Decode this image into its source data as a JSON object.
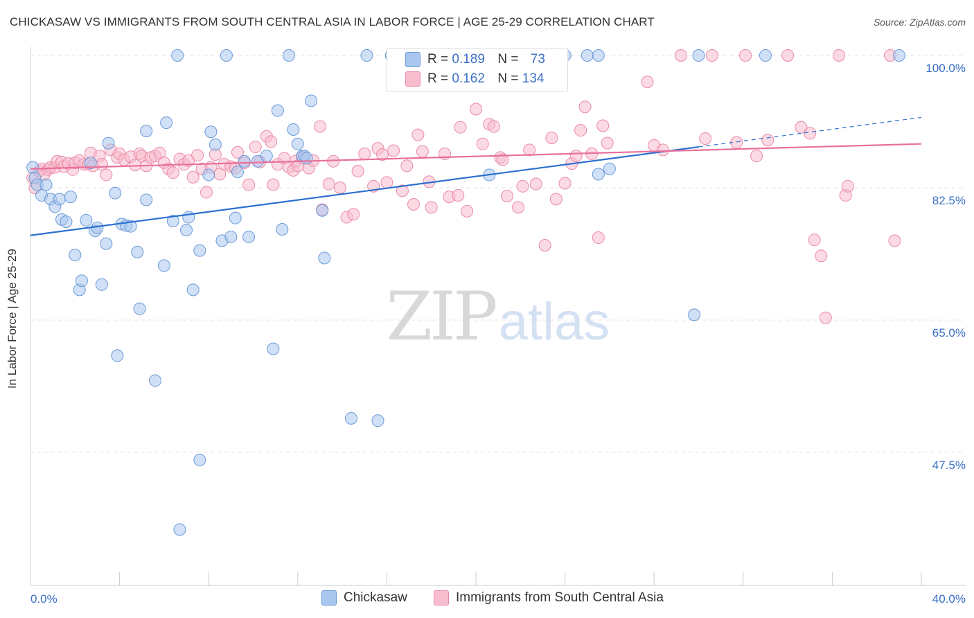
{
  "title": "CHICKASAW VS IMMIGRANTS FROM SOUTH CENTRAL ASIA IN LABOR FORCE | AGE 25-29 CORRELATION CHART",
  "source": "Source: ZipAtlas.com",
  "watermark": {
    "zip": "ZIP",
    "atlas": "atlas"
  },
  "legend": {
    "r_label": "R =",
    "n_label": "N =",
    "rows": [
      {
        "r": "0.189",
        "n": "73"
      },
      {
        "r": "0.162",
        "n": "134"
      }
    ]
  },
  "colors": {
    "blue_fill": "#a9c6ee",
    "blue_stroke": "#6b9ad8",
    "blue_line": "#2a6fd0",
    "pink_fill": "#f7bccd",
    "pink_stroke": "#ea8aa6",
    "pink_line": "#e8709a",
    "tick_label": "#3a6fc4"
  },
  "chart_data": {
    "type": "scatter",
    "title": "CHICKASAW VS IMMIGRANTS FROM SOUTH CENTRAL ASIA IN LABOR FORCE | AGE 25-29 CORRELATION CHART",
    "xlabel": "",
    "ylabel": "In Labor Force | Age 25-29",
    "xlim": [
      0,
      40
    ],
    "ylim": [
      30,
      101
    ],
    "x_tick_labels": [
      "0.0%",
      "40.0%"
    ],
    "y_ticks": [
      47.5,
      65.0,
      82.5,
      100.0
    ],
    "y_tick_labels": [
      "47.5%",
      "65.0%",
      "82.5%",
      "100.0%"
    ],
    "grid": true,
    "legend_position": "top-center",
    "series": [
      {
        "name": "Chickasaw",
        "r": 0.189,
        "n": 73,
        "trend": {
          "x0": 0,
          "y0": 76.2,
          "x1": 30.0,
          "y1": 87.9,
          "dash_to_x": 40,
          "dash_to_y": 91.8
        },
        "points": [
          [
            0.1,
            85.2
          ],
          [
            0.2,
            83.8
          ],
          [
            0.3,
            82.9
          ],
          [
            0.5,
            81.5
          ],
          [
            0.7,
            82.9
          ],
          [
            0.9,
            81.0
          ],
          [
            1.1,
            80.0
          ],
          [
            1.3,
            81.0
          ],
          [
            1.4,
            78.3
          ],
          [
            1.6,
            78.0
          ],
          [
            1.8,
            81.3
          ],
          [
            2.0,
            73.6
          ],
          [
            2.2,
            69.0
          ],
          [
            2.3,
            70.2
          ],
          [
            2.5,
            78.2
          ],
          [
            2.7,
            85.8
          ],
          [
            2.9,
            76.8
          ],
          [
            3.0,
            77.2
          ],
          [
            3.2,
            69.7
          ],
          [
            3.4,
            75.1
          ],
          [
            3.5,
            88.4
          ],
          [
            3.8,
            81.8
          ],
          [
            3.9,
            60.3
          ],
          [
            4.1,
            77.7
          ],
          [
            4.3,
            77.5
          ],
          [
            4.5,
            77.4
          ],
          [
            4.8,
            74.0
          ],
          [
            4.9,
            66.5
          ],
          [
            5.2,
            90.0
          ],
          [
            5.2,
            80.9
          ],
          [
            5.6,
            57.0
          ],
          [
            6.0,
            72.2
          ],
          [
            6.1,
            91.1
          ],
          [
            6.4,
            78.1
          ],
          [
            6.6,
            100.0
          ],
          [
            6.7,
            37.3
          ],
          [
            7.0,
            76.9
          ],
          [
            7.1,
            78.6
          ],
          [
            7.3,
            69.0
          ],
          [
            7.6,
            46.5
          ],
          [
            7.6,
            74.2
          ],
          [
            8.0,
            84.2
          ],
          [
            8.1,
            89.9
          ],
          [
            8.3,
            88.2
          ],
          [
            8.6,
            75.5
          ],
          [
            8.8,
            100.0
          ],
          [
            9.0,
            76.0
          ],
          [
            9.2,
            78.5
          ],
          [
            9.3,
            84.6
          ],
          [
            9.6,
            86.0
          ],
          [
            9.8,
            76.0
          ],
          [
            10.2,
            86.0
          ],
          [
            10.6,
            86.7
          ],
          [
            10.9,
            61.2
          ],
          [
            11.1,
            92.7
          ],
          [
            11.3,
            77.0
          ],
          [
            11.6,
            100.0
          ],
          [
            11.8,
            90.2
          ],
          [
            12.0,
            88.3
          ],
          [
            12.2,
            86.7
          ],
          [
            12.3,
            86.7
          ],
          [
            12.4,
            86.4
          ],
          [
            12.6,
            94.0
          ],
          [
            13.1,
            79.5
          ],
          [
            13.2,
            73.2
          ],
          [
            14.4,
            52.0
          ],
          [
            15.1,
            100.0
          ],
          [
            15.6,
            51.7
          ],
          [
            16.2,
            100.0
          ],
          [
            17.5,
            100.0
          ],
          [
            19.0,
            100.0
          ],
          [
            19.1,
            100.0
          ],
          [
            20.5,
            100.0
          ],
          [
            20.6,
            84.2
          ],
          [
            21.4,
            100.0
          ],
          [
            21.8,
            100.0
          ],
          [
            22.6,
            100.0
          ],
          [
            23.3,
            100.0
          ],
          [
            23.6,
            100.0
          ],
          [
            24.0,
            100.0
          ],
          [
            25.0,
            100.0
          ],
          [
            25.5,
            100.0
          ],
          [
            25.5,
            84.3
          ],
          [
            26.0,
            85.0
          ],
          [
            29.8,
            65.7
          ],
          [
            30.0,
            100.0
          ],
          [
            33.0,
            100.0
          ],
          [
            39.0,
            100.0
          ]
        ]
      },
      {
        "name": "Immigrants from South Central Asia",
        "r": 0.162,
        "n": 134,
        "trend": {
          "x0": 0,
          "y0": 85.0,
          "x1": 40,
          "y1": 88.3
        },
        "points": [
          [
            0.1,
            83.8
          ],
          [
            0.2,
            82.5
          ],
          [
            0.4,
            84.7
          ],
          [
            0.5,
            85.0
          ],
          [
            0.6,
            84.2
          ],
          [
            0.8,
            84.9
          ],
          [
            0.9,
            85.2
          ],
          [
            1.1,
            85.2
          ],
          [
            1.2,
            86.0
          ],
          [
            1.4,
            85.9
          ],
          [
            1.5,
            85.3
          ],
          [
            1.7,
            85.7
          ],
          [
            1.9,
            84.9
          ],
          [
            2.0,
            85.8
          ],
          [
            2.2,
            86.1
          ],
          [
            2.4,
            85.6
          ],
          [
            2.6,
            85.6
          ],
          [
            2.7,
            87.1
          ],
          [
            2.8,
            85.4
          ],
          [
            3.1,
            86.7
          ],
          [
            3.2,
            85.6
          ],
          [
            3.4,
            84.2
          ],
          [
            3.6,
            87.5
          ],
          [
            3.9,
            86.5
          ],
          [
            4.0,
            87.0
          ],
          [
            4.2,
            86.2
          ],
          [
            4.5,
            86.6
          ],
          [
            4.7,
            85.5
          ],
          [
            4.9,
            87.0
          ],
          [
            5.0,
            86.7
          ],
          [
            5.2,
            85.4
          ],
          [
            5.4,
            86.5
          ],
          [
            5.6,
            86.7
          ],
          [
            5.8,
            87.1
          ],
          [
            6.0,
            85.8
          ],
          [
            6.2,
            85.0
          ],
          [
            6.4,
            84.5
          ],
          [
            6.7,
            86.3
          ],
          [
            6.9,
            85.6
          ],
          [
            7.1,
            86.1
          ],
          [
            7.3,
            83.9
          ],
          [
            7.5,
            86.8
          ],
          [
            7.7,
            85.0
          ],
          [
            7.9,
            81.9
          ],
          [
            8.1,
            85.2
          ],
          [
            8.3,
            86.9
          ],
          [
            8.5,
            84.3
          ],
          [
            8.7,
            85.6
          ],
          [
            9.0,
            85.3
          ],
          [
            9.2,
            85.1
          ],
          [
            9.3,
            87.2
          ],
          [
            9.6,
            85.8
          ],
          [
            9.8,
            82.9
          ],
          [
            10.1,
            87.9
          ],
          [
            10.3,
            85.9
          ],
          [
            10.6,
            89.3
          ],
          [
            10.8,
            88.6
          ],
          [
            10.9,
            82.9
          ],
          [
            11.1,
            85.6
          ],
          [
            11.4,
            86.4
          ],
          [
            11.6,
            85.2
          ],
          [
            11.8,
            84.8
          ],
          [
            11.9,
            86.0
          ],
          [
            12.0,
            85.4
          ],
          [
            12.2,
            86.5
          ],
          [
            12.5,
            85.1
          ],
          [
            12.7,
            86.1
          ],
          [
            13.0,
            90.6
          ],
          [
            13.1,
            79.6
          ],
          [
            13.4,
            83.0
          ],
          [
            13.6,
            86.0
          ],
          [
            13.9,
            82.5
          ],
          [
            14.2,
            78.6
          ],
          [
            14.5,
            79.0
          ],
          [
            14.7,
            84.7
          ],
          [
            15.0,
            87.0
          ],
          [
            15.4,
            82.7
          ],
          [
            15.6,
            87.7
          ],
          [
            15.8,
            86.9
          ],
          [
            16.0,
            83.2
          ],
          [
            16.3,
            87.4
          ],
          [
            16.7,
            82.1
          ],
          [
            16.9,
            85.4
          ],
          [
            17.2,
            80.3
          ],
          [
            17.4,
            89.5
          ],
          [
            17.6,
            87.3
          ],
          [
            17.9,
            83.3
          ],
          [
            18.0,
            79.9
          ],
          [
            18.6,
            87.0
          ],
          [
            18.8,
            81.3
          ],
          [
            19.2,
            81.5
          ],
          [
            19.3,
            90.5
          ],
          [
            19.6,
            79.4
          ],
          [
            20.0,
            92.9
          ],
          [
            20.3,
            88.3
          ],
          [
            20.6,
            90.9
          ],
          [
            20.8,
            90.6
          ],
          [
            21.1,
            86.5
          ],
          [
            21.2,
            86.2
          ],
          [
            21.4,
            81.4
          ],
          [
            21.9,
            79.9
          ],
          [
            22.1,
            82.7
          ],
          [
            22.4,
            87.5
          ],
          [
            22.7,
            83.0
          ],
          [
            23.1,
            74.9
          ],
          [
            23.4,
            89.1
          ],
          [
            23.6,
            81.0
          ],
          [
            24.0,
            83.1
          ],
          [
            24.3,
            85.7
          ],
          [
            24.5,
            86.7
          ],
          [
            24.7,
            90.1
          ],
          [
            24.9,
            93.2
          ],
          [
            25.2,
            87.0
          ],
          [
            25.5,
            75.9
          ],
          [
            25.7,
            90.7
          ],
          [
            25.9,
            88.4
          ],
          [
            27.7,
            96.5
          ],
          [
            28.0,
            88.1
          ],
          [
            28.4,
            87.5
          ],
          [
            29.2,
            100.0
          ],
          [
            30.3,
            89.0
          ],
          [
            30.6,
            100.0
          ],
          [
            31.7,
            88.5
          ],
          [
            32.1,
            100.0
          ],
          [
            32.6,
            86.7
          ],
          [
            33.1,
            88.8
          ],
          [
            34.0,
            100.0
          ],
          [
            34.6,
            90.5
          ],
          [
            35.0,
            89.7
          ],
          [
            35.2,
            75.6
          ],
          [
            35.5,
            73.5
          ],
          [
            35.7,
            65.3
          ],
          [
            36.3,
            100.0
          ],
          [
            36.6,
            81.5
          ],
          [
            36.7,
            82.7
          ],
          [
            38.6,
            100.0
          ],
          [
            38.8,
            75.5
          ]
        ]
      }
    ]
  },
  "bottom_legend": [
    "Chickasaw",
    "Immigrants from South Central Asia"
  ]
}
